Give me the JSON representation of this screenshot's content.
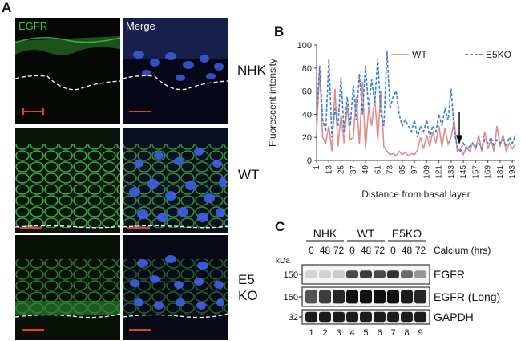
{
  "panel_a": {
    "letter": "A",
    "channel_labels": {
      "egfr": "EGFR",
      "merge": "Merge"
    },
    "row_labels": {
      "nhk": "NHK",
      "wt": "WT",
      "e5ko_line1": "E5",
      "e5ko_line2": "KO"
    },
    "colors": {
      "egfr_label": "#3fbf3f",
      "merge_label": "#ffffff",
      "membrane_green": "#3ec83e",
      "nuclei_blue": "#3e5ce0",
      "scale_bar": "#e23b3b"
    }
  },
  "panel_b": {
    "letter": "B"
  },
  "chart_data": {
    "type": "line",
    "ylabel": "Fluorescent intensity",
    "xlabel": "Distance from basal layer",
    "ylim": [
      0,
      100
    ],
    "yticks": [
      0,
      20,
      40,
      60,
      80,
      100
    ],
    "x_tick_labels": [
      "1",
      "13",
      "25",
      "37",
      "49",
      "61",
      "73",
      "85",
      "97",
      "109",
      "121",
      "133",
      "145",
      "157",
      "169",
      "181",
      "193"
    ],
    "x_range": [
      1,
      196
    ],
    "legend_position": "top",
    "arrow_annotation_x": 141,
    "x": [
      1,
      4,
      7,
      10,
      13,
      16,
      19,
      22,
      25,
      28,
      31,
      34,
      37,
      40,
      43,
      46,
      49,
      52,
      55,
      58,
      61,
      64,
      67,
      70,
      73,
      76,
      79,
      82,
      85,
      88,
      91,
      94,
      97,
      100,
      103,
      106,
      109,
      112,
      115,
      118,
      121,
      124,
      127,
      130,
      133,
      136,
      139,
      142,
      145,
      148,
      151,
      154,
      157,
      160,
      163,
      166,
      169,
      172,
      175,
      178,
      181,
      184,
      187,
      190,
      193,
      196
    ],
    "series": [
      {
        "name": "WT",
        "color": "#e08c8c",
        "dash": "solid",
        "values": [
          25,
          78,
          20,
          15,
          30,
          8,
          62,
          12,
          40,
          15,
          48,
          18,
          20,
          55,
          14,
          68,
          10,
          45,
          30,
          55,
          18,
          60,
          12,
          8,
          5,
          6,
          4,
          8,
          5,
          7,
          4,
          6,
          5,
          9,
          20,
          10,
          22,
          12,
          25,
          15,
          30,
          12,
          28,
          14,
          20,
          35,
          8,
          10,
          5,
          12,
          8,
          15,
          10,
          22,
          8,
          25,
          10,
          18,
          8,
          30,
          12,
          22,
          8,
          15,
          10,
          14
        ]
      },
      {
        "name": "E5KO",
        "color": "#3a7fd5",
        "dash": "dashed",
        "values": [
          40,
          82,
          35,
          25,
          88,
          20,
          45,
          30,
          72,
          25,
          55,
          30,
          65,
          35,
          75,
          40,
          82,
          45,
          70,
          50,
          88,
          40,
          30,
          95,
          45,
          55,
          60,
          40,
          30,
          35,
          30,
          25,
          35,
          20,
          30,
          25,
          35,
          20,
          30,
          25,
          40,
          30,
          45,
          35,
          62,
          25,
          12,
          8,
          15,
          10,
          12,
          15,
          12,
          15,
          10,
          18,
          15,
          20,
          12,
          18,
          15,
          18,
          12,
          20,
          15,
          22
        ]
      }
    ]
  },
  "panel_c": {
    "letter": "C",
    "groups": [
      "NHK",
      "WT",
      "E5KO"
    ],
    "timepoints": [
      "0",
      "48",
      "72"
    ],
    "timepoint_header": "Calcium (hrs)",
    "kda_label": "kDa",
    "mw_markers": [
      "150",
      "150",
      "32"
    ],
    "band_labels": [
      "EGFR",
      "EGFR (Long)",
      "GAPDH"
    ],
    "lane_numbers": [
      "1",
      "2",
      "3",
      "4",
      "5",
      "6",
      "7",
      "8",
      "9"
    ],
    "band_intensity": {
      "EGFR": [
        0.08,
        0.1,
        0.12,
        0.7,
        0.75,
        0.7,
        0.8,
        0.55,
        0.35
      ],
      "EGFR_long": [
        0.65,
        0.75,
        0.85,
        0.95,
        0.95,
        0.95,
        0.95,
        0.9,
        0.85
      ],
      "GAPDH": [
        0.9,
        0.9,
        0.9,
        0.9,
        0.9,
        0.9,
        0.9,
        0.9,
        0.9
      ]
    }
  }
}
